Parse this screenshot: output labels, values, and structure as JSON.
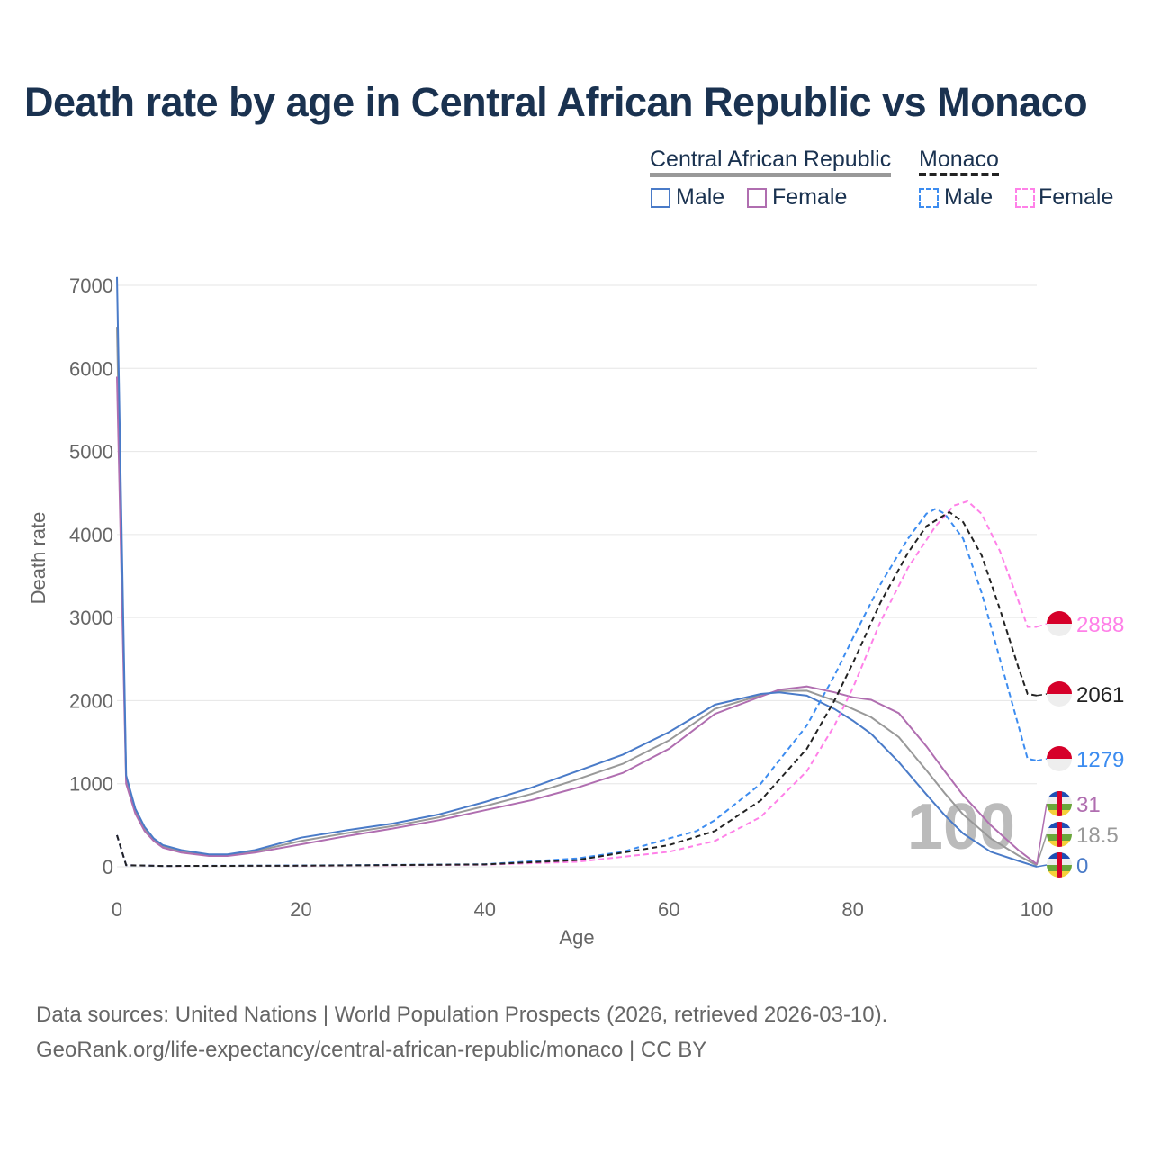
{
  "chart_data": {
    "type": "line",
    "title": "Death rate by age in Central African Republic vs Monaco",
    "xlabel": "Age",
    "ylabel": "Death rate",
    "xlim": [
      0,
      100
    ],
    "ylim": [
      0,
      7000
    ],
    "xticks": [
      "0",
      "20",
      "40",
      "60",
      "80",
      "100"
    ],
    "yticks": [
      "0",
      "1000",
      "2000",
      "3000",
      "4000",
      "5000",
      "6000",
      "7000"
    ],
    "grid": true,
    "legend": {
      "placement": "top-right",
      "groups": [
        {
          "name": "Central African Republic",
          "items": [
            "Male",
            "Female"
          ]
        },
        {
          "name": "Monaco",
          "items": [
            "Male",
            "Female"
          ]
        }
      ]
    },
    "watermark": "100",
    "series": [
      {
        "name": "Central African Republic Male",
        "color": "#4a7bc8",
        "dash": false,
        "end_label": "0",
        "points": [
          [
            0,
            7100
          ],
          [
            1,
            1100
          ],
          [
            2,
            700
          ],
          [
            3,
            480
          ],
          [
            4,
            340
          ],
          [
            5,
            260
          ],
          [
            7,
            200
          ],
          [
            10,
            150
          ],
          [
            12,
            150
          ],
          [
            15,
            200
          ],
          [
            20,
            350
          ],
          [
            25,
            440
          ],
          [
            30,
            520
          ],
          [
            35,
            630
          ],
          [
            40,
            780
          ],
          [
            45,
            950
          ],
          [
            50,
            1150
          ],
          [
            55,
            1350
          ],
          [
            60,
            1620
          ],
          [
            65,
            1950
          ],
          [
            70,
            2080
          ],
          [
            72,
            2100
          ],
          [
            75,
            2060
          ],
          [
            78,
            1900
          ],
          [
            80,
            1760
          ],
          [
            82,
            1600
          ],
          [
            85,
            1260
          ],
          [
            88,
            870
          ],
          [
            90,
            620
          ],
          [
            92,
            400
          ],
          [
            95,
            180
          ],
          [
            98,
            70
          ],
          [
            100,
            0
          ]
        ]
      },
      {
        "name": "Central African Republic Female",
        "color": "#b06eb0",
        "dash": false,
        "end_label": "31",
        "points": [
          [
            0,
            5900
          ],
          [
            1,
            1000
          ],
          [
            2,
            640
          ],
          [
            3,
            430
          ],
          [
            4,
            310
          ],
          [
            5,
            230
          ],
          [
            7,
            170
          ],
          [
            10,
            130
          ],
          [
            12,
            130
          ],
          [
            15,
            170
          ],
          [
            20,
            270
          ],
          [
            25,
            370
          ],
          [
            30,
            460
          ],
          [
            35,
            560
          ],
          [
            40,
            680
          ],
          [
            45,
            800
          ],
          [
            50,
            950
          ],
          [
            55,
            1130
          ],
          [
            60,
            1420
          ],
          [
            65,
            1840
          ],
          [
            70,
            2050
          ],
          [
            72,
            2130
          ],
          [
            75,
            2170
          ],
          [
            78,
            2100
          ],
          [
            80,
            2040
          ],
          [
            82,
            2010
          ],
          [
            85,
            1850
          ],
          [
            88,
            1450
          ],
          [
            90,
            1150
          ],
          [
            92,
            860
          ],
          [
            95,
            500
          ],
          [
            98,
            200
          ],
          [
            100,
            31
          ]
        ]
      },
      {
        "name": "Central African Republic",
        "color": "#999999",
        "dash": false,
        "end_label": "18.5",
        "points": [
          [
            0,
            6500
          ],
          [
            1,
            1050
          ],
          [
            2,
            670
          ],
          [
            3,
            455
          ],
          [
            4,
            325
          ],
          [
            5,
            245
          ],
          [
            7,
            185
          ],
          [
            10,
            140
          ],
          [
            12,
            140
          ],
          [
            15,
            185
          ],
          [
            20,
            310
          ],
          [
            25,
            405
          ],
          [
            30,
            490
          ],
          [
            35,
            595
          ],
          [
            40,
            730
          ],
          [
            45,
            875
          ],
          [
            50,
            1050
          ],
          [
            55,
            1240
          ],
          [
            60,
            1520
          ],
          [
            65,
            1900
          ],
          [
            70,
            2065
          ],
          [
            72,
            2115
          ],
          [
            75,
            2120
          ],
          [
            78,
            2000
          ],
          [
            80,
            1900
          ],
          [
            82,
            1800
          ],
          [
            85,
            1560
          ],
          [
            88,
            1160
          ],
          [
            90,
            885
          ],
          [
            92,
            630
          ],
          [
            95,
            340
          ],
          [
            98,
            135
          ],
          [
            100,
            18.5
          ]
        ]
      },
      {
        "name": "Monaco Male",
        "color": "#3c8cf0",
        "dash": true,
        "end_label": "1279",
        "points": [
          [
            0,
            380
          ],
          [
            1,
            20
          ],
          [
            5,
            10
          ],
          [
            20,
            15
          ],
          [
            40,
            30
          ],
          [
            50,
            100
          ],
          [
            55,
            180
          ],
          [
            60,
            340
          ],
          [
            63,
            430
          ],
          [
            65,
            560
          ],
          [
            70,
            1000
          ],
          [
            75,
            1700
          ],
          [
            78,
            2300
          ],
          [
            80,
            2750
          ],
          [
            83,
            3400
          ],
          [
            86,
            3950
          ],
          [
            88,
            4250
          ],
          [
            89,
            4310
          ],
          [
            90,
            4250
          ],
          [
            92,
            3950
          ],
          [
            94,
            3300
          ],
          [
            96,
            2500
          ],
          [
            98,
            1700
          ],
          [
            99,
            1300
          ],
          [
            100,
            1279
          ]
        ]
      },
      {
        "name": "Monaco Female",
        "color": "#ff80e8",
        "dash": true,
        "end_label": "2888",
        "points": [
          [
            0,
            380
          ],
          [
            1,
            20
          ],
          [
            5,
            10
          ],
          [
            20,
            12
          ],
          [
            40,
            25
          ],
          [
            50,
            60
          ],
          [
            60,
            180
          ],
          [
            65,
            310
          ],
          [
            70,
            600
          ],
          [
            75,
            1150
          ],
          [
            78,
            1700
          ],
          [
            80,
            2150
          ],
          [
            83,
            2950
          ],
          [
            86,
            3600
          ],
          [
            89,
            4100
          ],
          [
            91,
            4350
          ],
          [
            92.5,
            4400
          ],
          [
            94,
            4250
          ],
          [
            96,
            3800
          ],
          [
            98,
            3200
          ],
          [
            99,
            2888
          ],
          [
            100,
            2888
          ]
        ]
      },
      {
        "name": "Monaco",
        "color": "#222222",
        "dash": true,
        "end_label": "2061",
        "points": [
          [
            0,
            380
          ],
          [
            1,
            20
          ],
          [
            5,
            10
          ],
          [
            20,
            13
          ],
          [
            40,
            28
          ],
          [
            50,
            80
          ],
          [
            60,
            260
          ],
          [
            65,
            430
          ],
          [
            70,
            800
          ],
          [
            75,
            1420
          ],
          [
            78,
            2000
          ],
          [
            80,
            2450
          ],
          [
            83,
            3180
          ],
          [
            86,
            3780
          ],
          [
            88,
            4100
          ],
          [
            90.5,
            4270
          ],
          [
            92,
            4150
          ],
          [
            94,
            3750
          ],
          [
            96,
            3100
          ],
          [
            98,
            2400
          ],
          [
            99,
            2080
          ],
          [
            100,
            2061
          ]
        ]
      }
    ]
  },
  "source_lines": [
    "Data sources: United Nations | World Population Prospects (2026, retrieved 2026-03-10).",
    "GeoRank.org/life-expectancy/central-african-republic/monaco | CC BY"
  ]
}
